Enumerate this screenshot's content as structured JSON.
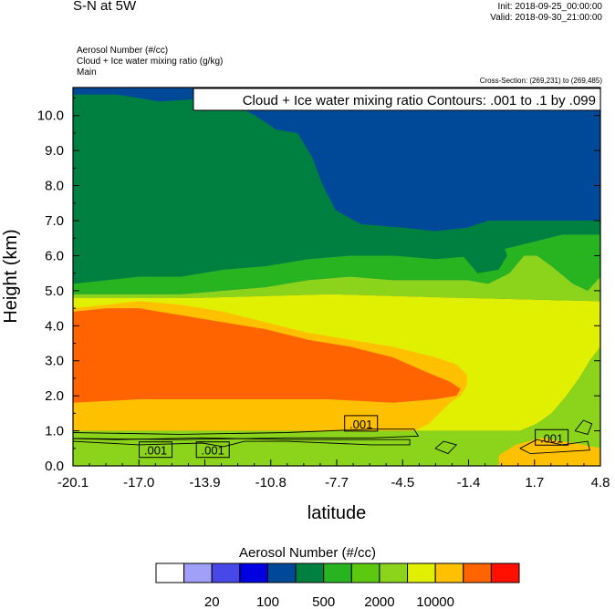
{
  "header": {
    "title": "S-N at 5W",
    "init": "Init: 2018-09-25_00:00:00",
    "valid": "Valid: 2018-09-30_21:00:00",
    "field1": "Aerosol Number   (#/cc)",
    "field2": "Cloud + Ice water mixing ratio   (g/kg)",
    "field3": "Main",
    "cross_section": "Cross-Section: (269,231) to (269,485)"
  },
  "chart_data": {
    "type": "heatmap",
    "title": "Cloud + Ice water mixing ratio Contours: .001 to .1 by .099",
    "xlabel": "latitude",
    "ylabel": "Height (km)",
    "x_ticks": [
      "-20.1",
      "-17.0",
      "-13.9",
      "-10.8",
      "-7.7",
      "-4.5",
      "-1.4",
      "1.7",
      "4.8"
    ],
    "y_ticks": [
      "0.0",
      "1.0",
      "2.0",
      "3.0",
      "4.0",
      "5.0",
      "6.0",
      "7.0",
      "8.0",
      "9.0",
      "10.0"
    ],
    "xlim": [
      -20.1,
      4.8
    ],
    "ylim": [
      0.0,
      10.8
    ],
    "contour_levels": [
      0.001,
      0.1
    ],
    "contour_labels": [
      {
        "x": -16.2,
        "y": 0.45,
        "text": ".001"
      },
      {
        "x": -13.5,
        "y": 0.45,
        "text": ".001"
      },
      {
        "x": -6.5,
        "y": 1.2,
        "text": ".001"
      },
      {
        "x": 2.5,
        "y": 0.8,
        "text": ".001"
      }
    ],
    "colorbar": {
      "title": "Aerosol Number  (#/cc)",
      "tick_labels": [
        "20",
        "100",
        "500",
        "2000",
        "10000"
      ],
      "colors": [
        "#ffffff",
        "#a0a0f8",
        "#4848e8",
        "#0000e0",
        "#004898",
        "#008040",
        "#28b420",
        "#5cc810",
        "#8cd41c",
        "#e0f000",
        "#ffc000",
        "#ff6400",
        "#ff1000"
      ]
    },
    "regions": [
      {
        "name": "upper-blue",
        "color": "#004898",
        "points": [
          [
            -20.1,
            10.8
          ],
          [
            4.8,
            10.8
          ],
          [
            4.8,
            7.0
          ],
          [
            3.5,
            7.0
          ],
          [
            1.5,
            7.0
          ],
          [
            -0.5,
            7.0
          ],
          [
            -1.5,
            6.8
          ],
          [
            -3,
            6.7
          ],
          [
            -4.5,
            6.8
          ],
          [
            -6.5,
            6.9
          ],
          [
            -7.7,
            7.3
          ],
          [
            -8.3,
            8.0
          ],
          [
            -8.8,
            8.8
          ],
          [
            -9.5,
            9.5
          ],
          [
            -10.5,
            9.6
          ],
          [
            -11.5,
            10.0
          ],
          [
            -12.5,
            10.3
          ],
          [
            -13.5,
            10.5
          ],
          [
            -16,
            10.4
          ],
          [
            -18,
            10.6
          ],
          [
            -20.1,
            10.6
          ]
        ]
      },
      {
        "name": "deep-blue-top",
        "color": "#0000e0",
        "points": [
          [
            -0.6,
            10.8
          ],
          [
            -0.5,
            10.6
          ],
          [
            0.4,
            10.3
          ],
          [
            1.5,
            10.2
          ],
          [
            1.8,
            10.4
          ],
          [
            2.0,
            10.8
          ]
        ]
      },
      {
        "name": "dark-green-band",
        "color": "#008040",
        "points": [
          [
            -20.1,
            10.6
          ],
          [
            -18,
            10.6
          ],
          [
            -16,
            10.4
          ],
          [
            -13.5,
            10.5
          ],
          [
            -12.5,
            10.3
          ],
          [
            -11.5,
            10.0
          ],
          [
            -10.5,
            9.6
          ],
          [
            -9.5,
            9.5
          ],
          [
            -8.8,
            8.8
          ],
          [
            -8.3,
            8.0
          ],
          [
            -7.7,
            7.3
          ],
          [
            -6.5,
            6.9
          ],
          [
            -4.5,
            6.8
          ],
          [
            -3,
            6.7
          ],
          [
            -1.5,
            6.8
          ],
          [
            -0.5,
            7.0
          ],
          [
            1.5,
            7.0
          ],
          [
            3.5,
            7.0
          ],
          [
            4.8,
            7.0
          ],
          [
            4.8,
            6.6
          ],
          [
            3,
            6.6
          ],
          [
            1,
            6.3
          ],
          [
            -1,
            6.0
          ],
          [
            -3,
            5.9
          ],
          [
            -5,
            6.0
          ],
          [
            -7,
            6.0
          ],
          [
            -9,
            5.9
          ],
          [
            -11,
            5.7
          ],
          [
            -13,
            5.6
          ],
          [
            -15,
            5.4
          ],
          [
            -17,
            5.4
          ],
          [
            -18.5,
            5.3
          ],
          [
            -20.1,
            5.2
          ]
        ]
      },
      {
        "name": "green-band",
        "color": "#28b420",
        "points": [
          [
            -20.1,
            5.2
          ],
          [
            -18.5,
            5.3
          ],
          [
            -17,
            5.4
          ],
          [
            -15,
            5.4
          ],
          [
            -13,
            5.6
          ],
          [
            -11,
            5.7
          ],
          [
            -9,
            5.9
          ],
          [
            -7,
            6.0
          ],
          [
            -5,
            6.0
          ],
          [
            -3,
            5.9
          ],
          [
            -1,
            6.0
          ],
          [
            1,
            6.3
          ],
          [
            3,
            6.6
          ],
          [
            4.8,
            6.6
          ],
          [
            4.8,
            5.4
          ],
          [
            4.2,
            5.0
          ],
          [
            3.5,
            5.2
          ],
          [
            2.5,
            5.7
          ],
          [
            1.8,
            6.0
          ],
          [
            1.2,
            6.0
          ],
          [
            0.5,
            5.5
          ],
          [
            -0.5,
            5.2
          ],
          [
            -1.5,
            5.3
          ],
          [
            -3,
            5.3
          ],
          [
            -5,
            5.3
          ],
          [
            -7,
            5.4
          ],
          [
            -9,
            5.3
          ],
          [
            -11,
            5.1
          ],
          [
            -13,
            5.0
          ],
          [
            -15,
            4.9
          ],
          [
            -17,
            4.9
          ],
          [
            -18.5,
            4.9
          ],
          [
            -20.1,
            4.9
          ]
        ]
      },
      {
        "name": "lime-layer",
        "color": "#8cd41c",
        "points": [
          [
            -20.1,
            4.9
          ],
          [
            -18.5,
            4.9
          ],
          [
            -17,
            4.9
          ],
          [
            -15,
            4.9
          ],
          [
            -13,
            5.0
          ],
          [
            -11,
            5.1
          ],
          [
            -9,
            5.3
          ],
          [
            -7,
            5.4
          ],
          [
            -5,
            5.3
          ],
          [
            -3,
            5.3
          ],
          [
            -1.5,
            5.3
          ],
          [
            -0.5,
            5.2
          ],
          [
            0.5,
            5.5
          ],
          [
            1.2,
            6.0
          ],
          [
            1.8,
            6.0
          ],
          [
            2.5,
            5.7
          ],
          [
            3.5,
            5.2
          ],
          [
            4.2,
            5.0
          ],
          [
            4.8,
            5.4
          ],
          [
            4.8,
            4.7
          ],
          [
            -2,
            4.8
          ],
          [
            -8,
            4.9
          ],
          [
            -14,
            4.8
          ],
          [
            -20.1,
            4.8
          ]
        ]
      },
      {
        "name": "yellow-layer",
        "color": "#e0f000",
        "points": [
          [
            -20.1,
            4.8
          ],
          [
            -14,
            4.8
          ],
          [
            -8,
            4.9
          ],
          [
            -2,
            4.8
          ],
          [
            4.8,
            4.7
          ],
          [
            4.8,
            3.4
          ],
          [
            4.3,
            3.0
          ],
          [
            3.8,
            2.5
          ],
          [
            3.2,
            2.0
          ],
          [
            2.5,
            1.5
          ],
          [
            1.8,
            1.2
          ],
          [
            1.0,
            1.0
          ],
          [
            -1,
            1.0
          ],
          [
            -4,
            1.0
          ],
          [
            -20.1,
            1.0
          ]
        ]
      },
      {
        "name": "amber-layer",
        "color": "#ffc000",
        "points": [
          [
            -20.1,
            4.5
          ],
          [
            -18.5,
            4.6
          ],
          [
            -17,
            4.7
          ],
          [
            -15,
            4.6
          ],
          [
            -13,
            4.4
          ],
          [
            -11,
            4.1
          ],
          [
            -9,
            3.8
          ],
          [
            -7,
            3.6
          ],
          [
            -5,
            3.4
          ],
          [
            -3,
            3.1
          ],
          [
            -2,
            2.9
          ],
          [
            -1.5,
            2.6
          ],
          [
            -1.5,
            2.3
          ],
          [
            -1.8,
            2.0
          ],
          [
            -2.3,
            1.8
          ],
          [
            -2.8,
            1.5
          ],
          [
            -3.3,
            1.2
          ],
          [
            -4,
            1.0
          ],
          [
            -20.1,
            1.0
          ]
        ]
      },
      {
        "name": "orange-core",
        "color": "#ff6400",
        "points": [
          [
            -20.1,
            4.4
          ],
          [
            -18.5,
            4.5
          ],
          [
            -17,
            4.5
          ],
          [
            -15,
            4.3
          ],
          [
            -13,
            4.1
          ],
          [
            -11,
            3.9
          ],
          [
            -9,
            3.6
          ],
          [
            -7,
            3.4
          ],
          [
            -5,
            3.1
          ],
          [
            -3.5,
            2.7
          ],
          [
            -2.3,
            2.4
          ],
          [
            -1.8,
            2.2
          ],
          [
            -2.0,
            2.0
          ],
          [
            -3,
            1.9
          ],
          [
            -5,
            1.8
          ],
          [
            -8,
            1.9
          ],
          [
            -11,
            1.9
          ],
          [
            -14,
            1.9
          ],
          [
            -17,
            1.9
          ],
          [
            -20.1,
            1.8
          ]
        ]
      },
      {
        "name": "surface-lime",
        "color": "#8cd41c",
        "points": [
          [
            -20.1,
            1.0
          ],
          [
            -4,
            1.0
          ],
          [
            -1,
            1.0
          ],
          [
            1.0,
            1.0
          ],
          [
            1.8,
            1.2
          ],
          [
            2.5,
            1.5
          ],
          [
            3.2,
            2.0
          ],
          [
            3.8,
            2.5
          ],
          [
            4.3,
            3.0
          ],
          [
            4.8,
            3.4
          ],
          [
            4.8,
            0
          ],
          [
            -20.1,
            0
          ]
        ]
      },
      {
        "name": "surface-amber",
        "color": "#ffc000",
        "points": [
          [
            0.0,
            0.0
          ],
          [
            0.0,
            0.3
          ],
          [
            0.8,
            0.6
          ],
          [
            2.0,
            0.8
          ],
          [
            3.0,
            0.7
          ],
          [
            4.0,
            0.6
          ],
          [
            4.8,
            0.5
          ],
          [
            4.8,
            0.0
          ]
        ]
      },
      {
        "name": "upper-right-dark",
        "color": "#004898",
        "points": [
          [
            3.4,
            10.8
          ],
          [
            4.8,
            10.8
          ],
          [
            4.8,
            8.8
          ],
          [
            4.0,
            8.6
          ],
          [
            3.5,
            9.2
          ],
          [
            3.2,
            10.0
          ]
        ]
      },
      {
        "name": "mid-right-dark",
        "color": "#008040",
        "points": [
          [
            -1.7,
            6.0
          ],
          [
            -1.0,
            6.5
          ],
          [
            0.0,
            6.6
          ],
          [
            0.4,
            6.0
          ],
          [
            0.0,
            5.6
          ],
          [
            -1.0,
            5.5
          ]
        ]
      }
    ],
    "contours": [
      [
        [
          -20.1,
          0.95
        ],
        [
          -15,
          0.9
        ],
        [
          -10,
          0.95
        ],
        [
          -6,
          1.05
        ],
        [
          -4.0,
          1.05
        ],
        [
          -3.8,
          0.85
        ],
        [
          -6,
          0.8
        ],
        [
          -10,
          0.8
        ],
        [
          -15,
          0.75
        ],
        [
          -20.1,
          0.78
        ]
      ],
      [
        [
          -20.1,
          0.7
        ],
        [
          -17,
          0.6
        ],
        [
          -14,
          0.65
        ],
        [
          -13,
          0.55
        ],
        [
          -12,
          0.7
        ],
        [
          -10,
          0.7
        ],
        [
          -6,
          0.6
        ],
        [
          -4.2,
          0.6
        ],
        [
          -4.2,
          0.75
        ],
        [
          -6,
          0.75
        ],
        [
          -10,
          0.75
        ],
        [
          -14,
          0.8
        ],
        [
          -18,
          0.75
        ],
        [
          -20.1,
          0.78
        ]
      ],
      [
        [
          -3.0,
          0.5
        ],
        [
          -2.6,
          0.7
        ],
        [
          -2.0,
          0.6
        ],
        [
          -2.4,
          0.35
        ],
        [
          -3.0,
          0.5
        ]
      ],
      [
        [
          1.0,
          0.5
        ],
        [
          1.8,
          0.75
        ],
        [
          3,
          0.6
        ],
        [
          4.2,
          0.7
        ],
        [
          4.3,
          0.45
        ],
        [
          3,
          0.4
        ],
        [
          1.5,
          0.35
        ],
        [
          1.0,
          0.5
        ]
      ],
      [
        [
          3.6,
          1.0
        ],
        [
          4.0,
          1.3
        ],
        [
          4.4,
          1.2
        ],
        [
          4.2,
          0.9
        ],
        [
          3.6,
          1.0
        ]
      ]
    ]
  }
}
